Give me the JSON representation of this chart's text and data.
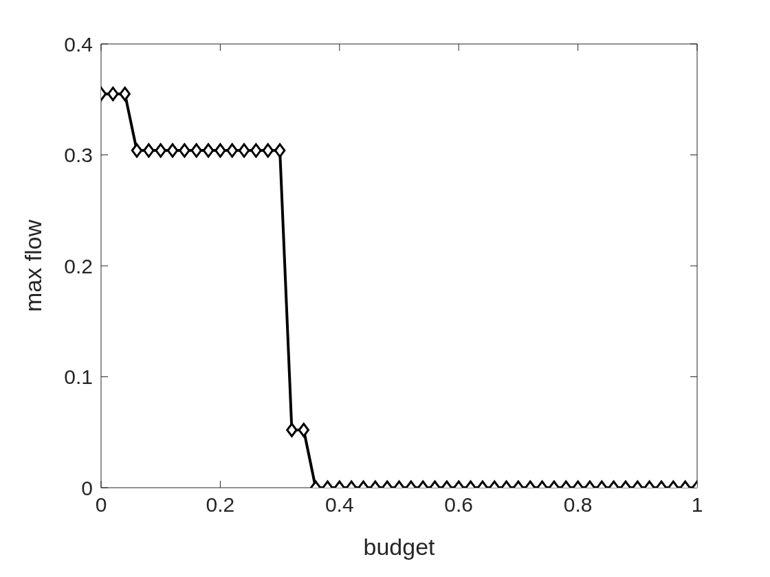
{
  "chart_data": {
    "type": "line",
    "xlabel": "budget",
    "ylabel": "max flow",
    "x": [
      0,
      0.02,
      0.04,
      0.06,
      0.08,
      0.1,
      0.12,
      0.14,
      0.16,
      0.18,
      0.2,
      0.22,
      0.24,
      0.26,
      0.28,
      0.3,
      0.32,
      0.34,
      0.36,
      0.38,
      0.4,
      0.42,
      0.44,
      0.46,
      0.48,
      0.5,
      0.52,
      0.54,
      0.56,
      0.58,
      0.6,
      0.62,
      0.64,
      0.66,
      0.68,
      0.7,
      0.72,
      0.74,
      0.76,
      0.78,
      0.8,
      0.82,
      0.84,
      0.86,
      0.88,
      0.9,
      0.92,
      0.94,
      0.96,
      0.98,
      1
    ],
    "series": [
      {
        "color": "#000000",
        "values": [
          0.355,
          0.355,
          0.355,
          0.304,
          0.304,
          0.304,
          0.304,
          0.304,
          0.304,
          0.304,
          0.304,
          0.304,
          0.304,
          0.304,
          0.304,
          0.304,
          0.052,
          0.052,
          0,
          0,
          0,
          0,
          0,
          0,
          0,
          0,
          0,
          0,
          0,
          0,
          0,
          0,
          0,
          0,
          0,
          0,
          0,
          0,
          0,
          0,
          0,
          0,
          0,
          0,
          0,
          0,
          0,
          0,
          0,
          0,
          0
        ]
      }
    ],
    "xlim": [
      0,
      1
    ],
    "xticks": [
      0,
      0.2,
      0.4,
      0.6,
      0.8,
      1
    ],
    "ylim": [
      0,
      0.4
    ],
    "yticks": [
      0,
      0.1,
      0.2,
      0.3,
      0.4
    ],
    "grid": false,
    "legend": false,
    "marker": "diamond",
    "line_style": "solid"
  }
}
